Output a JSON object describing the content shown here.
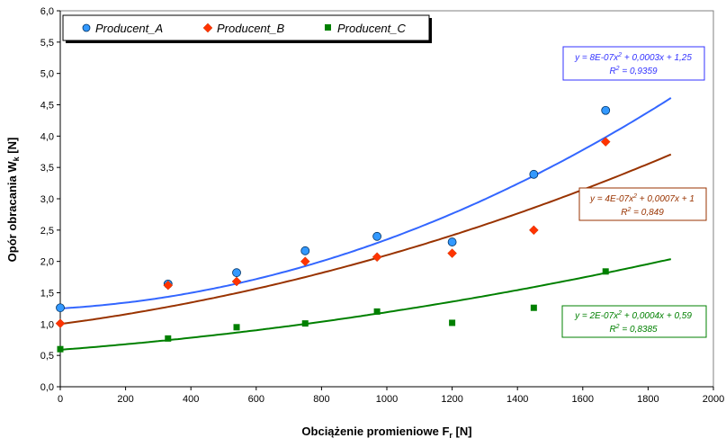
{
  "chart_data": {
    "type": "scatter",
    "xlabel": "Obciążenie promieniowe F",
    "xlabel_sub": "r",
    "xlabel_unit": " [N]",
    "ylabel": "Opór obracania W",
    "ylabel_sub": "k",
    "ylabel_unit": "  [N]",
    "xlim": [
      0,
      2000
    ],
    "ylim": [
      0,
      6
    ],
    "x_ticks": [
      "0",
      "200",
      "400",
      "600",
      "800",
      "1000",
      "1200",
      "1400",
      "1600",
      "1800",
      "2000"
    ],
    "y_ticks": [
      "0,0",
      "0,5",
      "1,0",
      "1,5",
      "2,0",
      "2,5",
      "3,0",
      "3,5",
      "4,0",
      "4,5",
      "5,0",
      "5,5",
      "6,0"
    ],
    "grid": true,
    "legend_position": "top-left",
    "trend_x_end": 1870,
    "series": [
      {
        "name": "Producent_A",
        "marker": "circle",
        "color": "#3399FF",
        "line_color": "#3366FF",
        "x": [
          0,
          330,
          540,
          750,
          970,
          1200,
          1450,
          1670
        ],
        "y": [
          1.26,
          1.64,
          1.82,
          2.17,
          2.4,
          2.31,
          3.39,
          4.41
        ],
        "trend": {
          "a": 8e-07,
          "b": 0.0003,
          "c": 1.25,
          "equation": "y = 8E-07x",
          "equation_rest": " + 0,0003x + 1,25",
          "r2": "R",
          "r2_value": " = 0,9359"
        }
      },
      {
        "name": "Producent_B",
        "marker": "diamond",
        "color": "#FF3300",
        "line_color": "#993300",
        "x": [
          0,
          330,
          540,
          750,
          970,
          1200,
          1450,
          1670
        ],
        "y": [
          1.01,
          1.62,
          1.68,
          2.0,
          2.07,
          2.13,
          2.5,
          3.91
        ],
        "trend": {
          "a": 4e-07,
          "b": 0.0007,
          "c": 1,
          "equation": "y = 4E-07x",
          "equation_rest": " + 0,0007x + 1",
          "r2": "R",
          "r2_value": " = 0,849"
        }
      },
      {
        "name": "Producent_C",
        "marker": "square",
        "color": "#008000",
        "line_color": "#008000",
        "x": [
          0,
          330,
          540,
          750,
          970,
          1200,
          1450,
          1670
        ],
        "y": [
          0.6,
          0.77,
          0.95,
          1.01,
          1.2,
          1.02,
          1.26,
          1.84
        ],
        "trend": {
          "a": 2e-07,
          "b": 0.0004,
          "c": 0.59,
          "equation": "y = 2E-07x",
          "equation_rest": " + 0,0004x + 0,59",
          "r2": "R",
          "r2_value": " = 0,8385"
        }
      }
    ]
  }
}
